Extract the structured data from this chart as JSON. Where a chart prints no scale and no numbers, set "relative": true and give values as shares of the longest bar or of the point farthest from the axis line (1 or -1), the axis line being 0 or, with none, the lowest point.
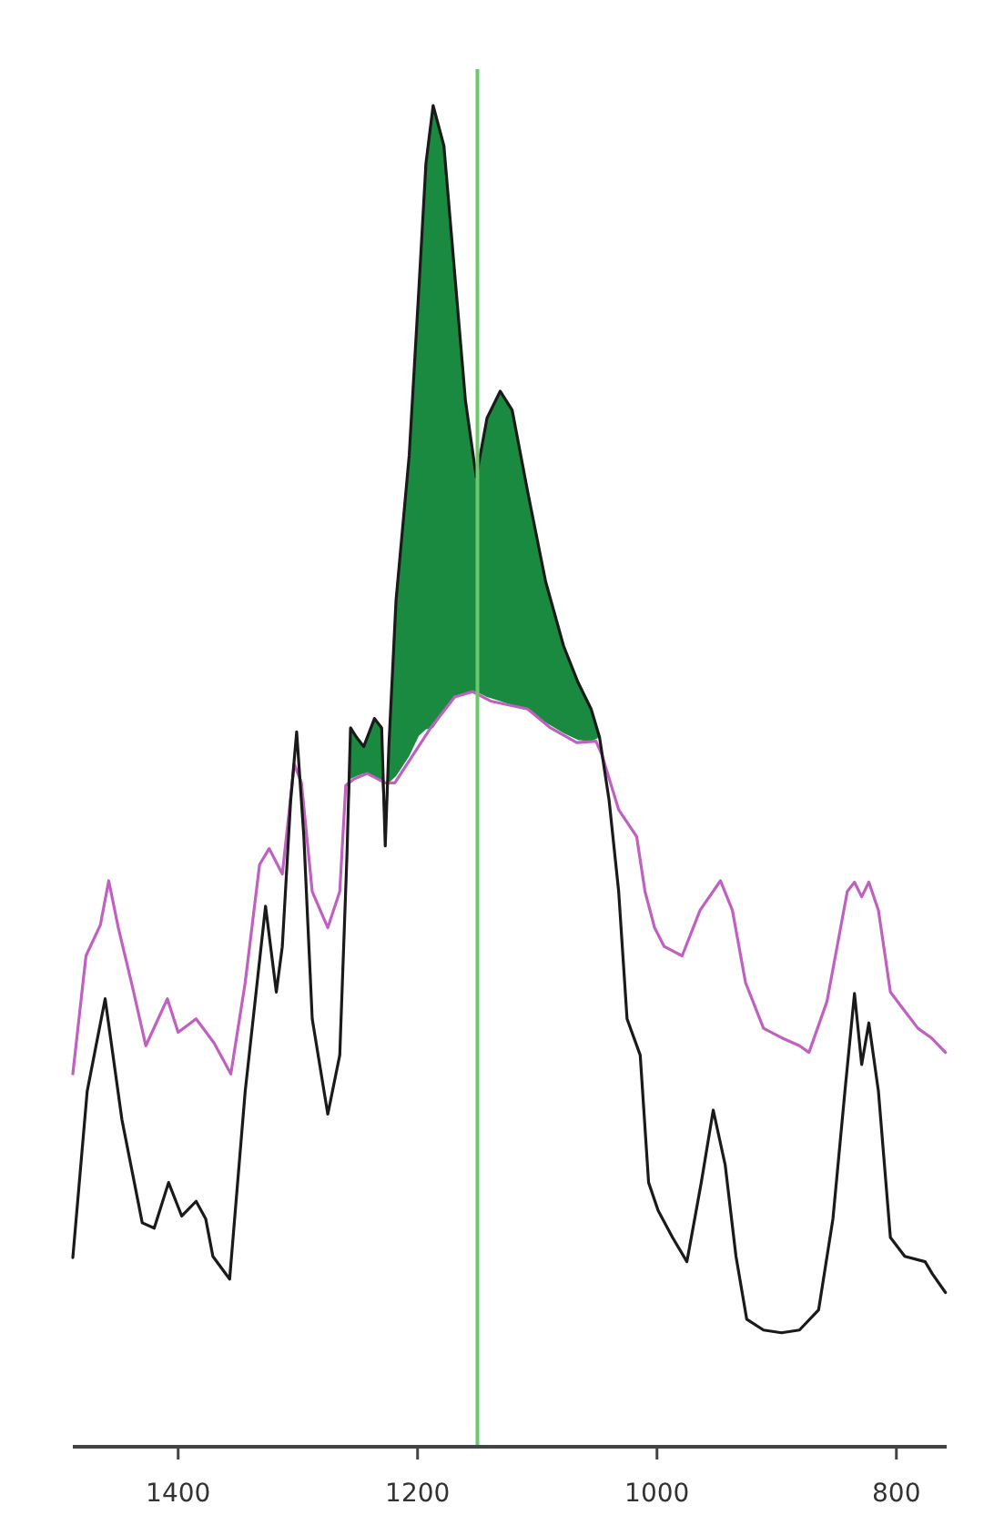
{
  "chart_data": {
    "type": "line",
    "relative": true,
    "xlim": [
      1488,
      758
    ],
    "xticks": [
      1400,
      1200,
      1000,
      800
    ],
    "tick_labels": "x",
    "grid": false,
    "line_style": "solid",
    "marker": "none",
    "series": [
      {
        "color": "#c060c0",
        "x": [
          1488,
          1477,
          1465,
          1458,
          1450,
          1439,
          1427,
          1409,
          1400,
          1385,
          1370,
          1356,
          1344,
          1332,
          1324,
          1313,
          1303,
          1297,
          1288,
          1275,
          1265,
          1260,
          1253,
          1242,
          1227,
          1219,
          1189,
          1169,
          1154,
          1139,
          1108,
          1089,
          1067,
          1051,
          1046,
          1032,
          1017,
          1010,
          1002,
          994,
          979,
          964,
          947,
          937,
          926,
          911,
          896,
          881,
          873,
          858,
          841,
          835,
          829,
          823,
          815,
          805,
          794,
          782,
          771,
          759
        ],
        "values": [
          0.278,
          0.366,
          0.389,
          0.422,
          0.387,
          0.346,
          0.299,
          0.334,
          0.309,
          0.319,
          0.301,
          0.278,
          0.346,
          0.434,
          0.446,
          0.427,
          0.509,
          0.495,
          0.414,
          0.387,
          0.414,
          0.493,
          0.498,
          0.502,
          0.495,
          0.495,
          0.536,
          0.559,
          0.563,
          0.556,
          0.55,
          0.536,
          0.525,
          0.526,
          0.516,
          0.475,
          0.455,
          0.414,
          0.387,
          0.373,
          0.366,
          0.4,
          0.422,
          0.4,
          0.346,
          0.312,
          0.305,
          0.299,
          0.294,
          0.332,
          0.414,
          0.421,
          0.41,
          0.421,
          0.4,
          0.339,
          0.326,
          0.312,
          0.305,
          0.294
        ]
      },
      {
        "color": "#1a1a1a",
        "lower": [
          null,
          null,
          null,
          null,
          null,
          null,
          null,
          null,
          null,
          null,
          null,
          null,
          null,
          null,
          null,
          null,
          null,
          null,
          null,
          null,
          null,
          null,
          0.441,
          0.498,
          0.5,
          0.502,
          0.5,
          0.496,
          0.448,
          0.495,
          0.5,
          0.515,
          0.53,
          0.535,
          0.536,
          0.548,
          0.559,
          0.561,
          0.563,
          0.559,
          0.556,
          0.553,
          0.55,
          0.54,
          0.532,
          0.527,
          0.526,
          0.529,
          null,
          null,
          null,
          null,
          null,
          null,
          null,
          null,
          null,
          null,
          null,
          null,
          null,
          null,
          null,
          null,
          null,
          null,
          null,
          null,
          null,
          null,
          null,
          null,
          null,
          null,
          null,
          null
        ],
        "upper": [
          null,
          null,
          null,
          null,
          null,
          null,
          null,
          null,
          null,
          null,
          null,
          null,
          null,
          null,
          null,
          null,
          null,
          null,
          null,
          null,
          null,
          null,
          0.441,
          0.536,
          0.529,
          0.522,
          0.543,
          0.536,
          0.448,
          0.522,
          0.631,
          0.739,
          0.862,
          0.957,
          1,
          0.97,
          0.875,
          0.78,
          0.723,
          0.767,
          0.787,
          0.773,
          0.712,
          0.645,
          0.597,
          0.57,
          0.55,
          0.529,
          null,
          null,
          null,
          null,
          null,
          null,
          null,
          null,
          null,
          null,
          null,
          null,
          null,
          null,
          null,
          null,
          null,
          null,
          null,
          null,
          null,
          null,
          null,
          null,
          null,
          null,
          null,
          null
        ],
        "x": [
          1488,
          1476,
          1461,
          1447,
          1430,
          1420,
          1408,
          1397,
          1385,
          1377,
          1371,
          1357,
          1344,
          1327,
          1318,
          1313,
          1306,
          1301,
          1295,
          1288,
          1275,
          1265,
          1259,
          1256,
          1251,
          1245,
          1236,
          1230,
          1227,
          1224,
          1218,
          1207,
          1199,
          1193,
          1187,
          1178,
          1169,
          1160,
          1151,
          1142,
          1131,
          1121,
          1108,
          1093,
          1078,
          1066,
          1055,
          1048,
          1040,
          1032,
          1025,
          1014,
          1007,
          999,
          987,
          975,
          963,
          953,
          943,
          934,
          925,
          911,
          896,
          881,
          865,
          853,
          843,
          835,
          829,
          823,
          815,
          805,
          793,
          776,
          770,
          759
        ],
        "values": [
          0.141,
          0.265,
          0.334,
          0.244,
          0.167,
          0.163,
          0.197,
          0.172,
          0.183,
          0.17,
          0.142,
          0.125,
          0.265,
          0.403,
          0.339,
          0.373,
          0.482,
          0.533,
          0.455,
          0.319,
          0.248,
          0.292,
          0.441,
          0.536,
          0.529,
          0.522,
          0.543,
          0.536,
          0.448,
          0.522,
          0.631,
          0.739,
          0.862,
          0.957,
          1,
          0.97,
          0.875,
          0.78,
          0.723,
          0.767,
          0.787,
          0.773,
          0.712,
          0.645,
          0.597,
          0.57,
          0.55,
          0.529,
          0.482,
          0.414,
          0.319,
          0.292,
          0.197,
          0.176,
          0.156,
          0.138,
          0.197,
          0.251,
          0.21,
          0.142,
          0.095,
          0.087,
          0.085,
          0.087,
          0.102,
          0.17,
          0.265,
          0.338,
          0.285,
          0.316,
          0.265,
          0.156,
          0.142,
          0.138,
          0.129,
          0.115
        ]
      }
    ],
    "ref_lines": [
      {
        "axis": "x",
        "value": 1150,
        "color": "#6cc86c"
      }
    ]
  }
}
